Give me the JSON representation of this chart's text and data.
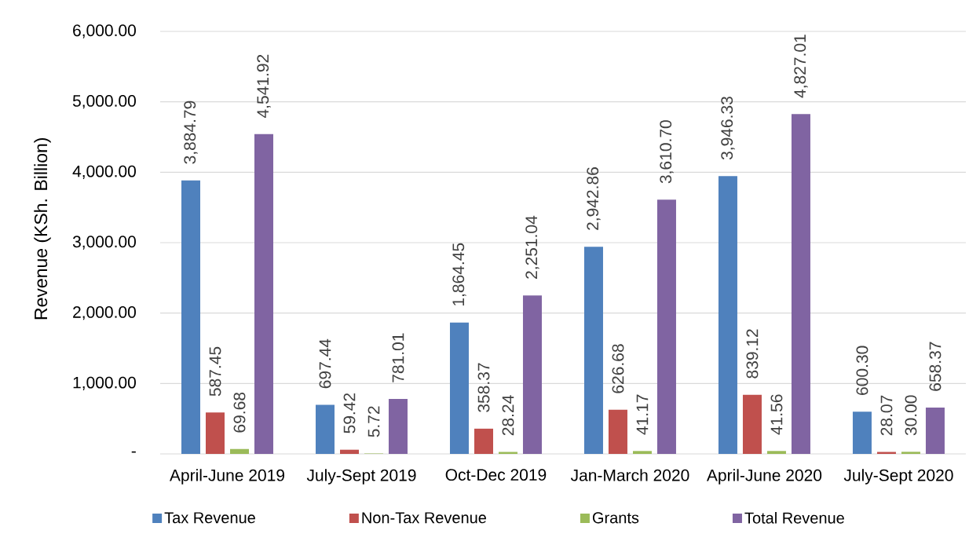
{
  "chart_data": {
    "type": "bar",
    "ylabel": "Revenue (KSh. Billion)",
    "categories": [
      "April-June 2019",
      "July-Sept 2019",
      "Oct-Dec 2019",
      "Jan-March 2020",
      "April-June 2020",
      "July-Sept 2020"
    ],
    "ylim": [
      0,
      6000
    ],
    "yticks": [
      {
        "value": 0,
        "label": "-"
      },
      {
        "value": 1000,
        "label": "1,000.00"
      },
      {
        "value": 2000,
        "label": "2,000.00"
      },
      {
        "value": 3000,
        "label": "3,000.00"
      },
      {
        "value": 4000,
        "label": "4,000.00"
      },
      {
        "value": 5000,
        "label": "5,000.00"
      },
      {
        "value": 6000,
        "label": "6,000.00"
      }
    ],
    "grid": "y",
    "legend": "bottom",
    "series": [
      {
        "name": "Tax Revenue",
        "color": "#4f81bd",
        "values": [
          3884.79,
          697.44,
          1864.45,
          2942.86,
          3946.33,
          600.3
        ],
        "value_labels": [
          "3,884.79",
          "697.44",
          "1,864.45",
          "2,942.86",
          "3,946.33",
          "600.30"
        ]
      },
      {
        "name": "Non-Tax Revenue",
        "color": "#c0504d",
        "values": [
          587.45,
          59.42,
          358.37,
          626.68,
          839.12,
          28.07
        ],
        "value_labels": [
          "587.45",
          "59.42",
          "358.37",
          "626.68",
          "839.12",
          "28.07"
        ]
      },
      {
        "name": "Grants",
        "color": "#9bbb59",
        "values": [
          69.68,
          5.72,
          28.24,
          41.17,
          41.56,
          30.0
        ],
        "value_labels": [
          "69.68",
          "5.72",
          "28.24",
          "41.17",
          "41.56",
          "30.00"
        ]
      },
      {
        "name": "Total Revenue",
        "color": "#8064a2",
        "values": [
          4541.92,
          781.01,
          2251.04,
          3610.7,
          4827.01,
          658.37
        ],
        "value_labels": [
          "4,541.92",
          "781.01",
          "2,251.04",
          "3,610.70",
          "4,827.01",
          "658.37"
        ]
      }
    ]
  }
}
